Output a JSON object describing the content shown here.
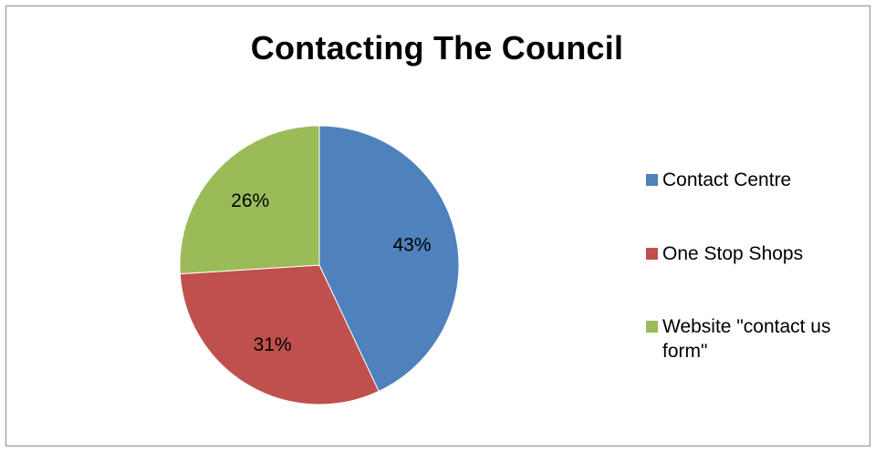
{
  "chart_data": {
    "type": "pie",
    "title": "Contacting The Council",
    "categories": [
      "Contact Centre",
      "One Stop Shops",
      "Website \"contact us form\""
    ],
    "values": [
      43,
      31,
      26
    ],
    "labels": [
      "43%",
      "31%",
      "26%"
    ],
    "colors": [
      "#4F81BD",
      "#C0504D",
      "#9BBB59"
    ],
    "legend_position": "right",
    "legend": {
      "items": [
        {
          "label": "Contact Centre",
          "color": "#4F81BD"
        },
        {
          "label": "One Stop Shops",
          "color": "#C0504D"
        },
        {
          "label": "Website \"contact us form\"",
          "color": "#9BBB59"
        }
      ]
    }
  }
}
